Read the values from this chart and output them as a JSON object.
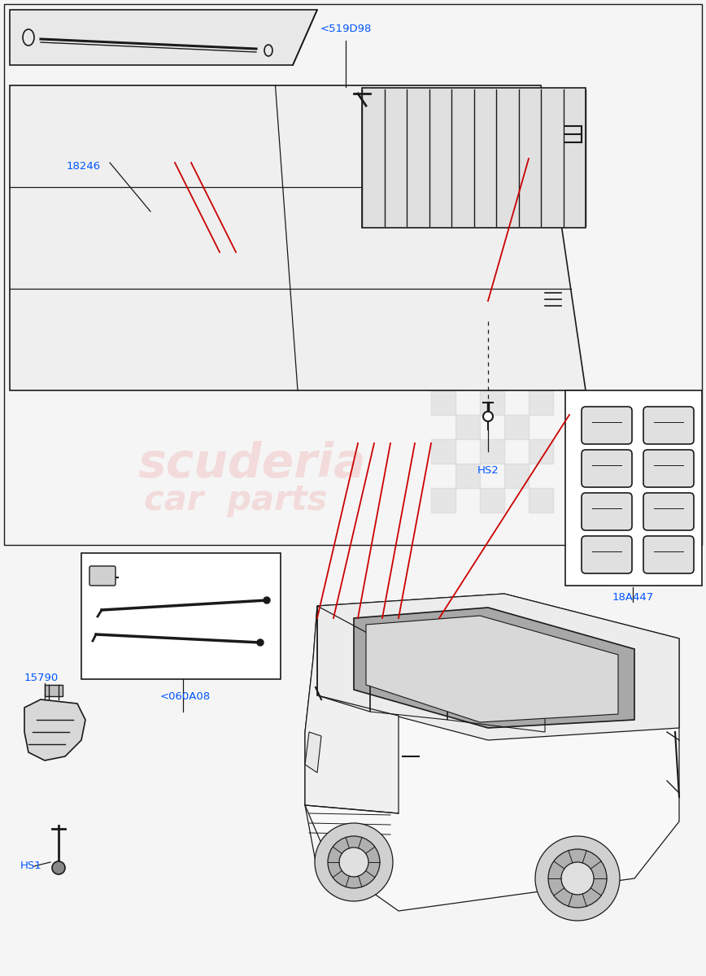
{
  "bg_color": "#f5f5f5",
  "label_color": "#0055ff",
  "line_color": "#1a1a1a",
  "red_color": "#cc0000",
  "part_labels": {
    "519D98": "<519D98",
    "18246": "18246",
    "060A08": "<060A08",
    "15790": "15790",
    "HS1": "HS1",
    "HS2": "HS2",
    "18A447": "18A447"
  },
  "watermark1": "scuderia",
  "watermark2": "car  parts",
  "wm_color": "#f0a0a0",
  "wm_alpha": 0.3
}
